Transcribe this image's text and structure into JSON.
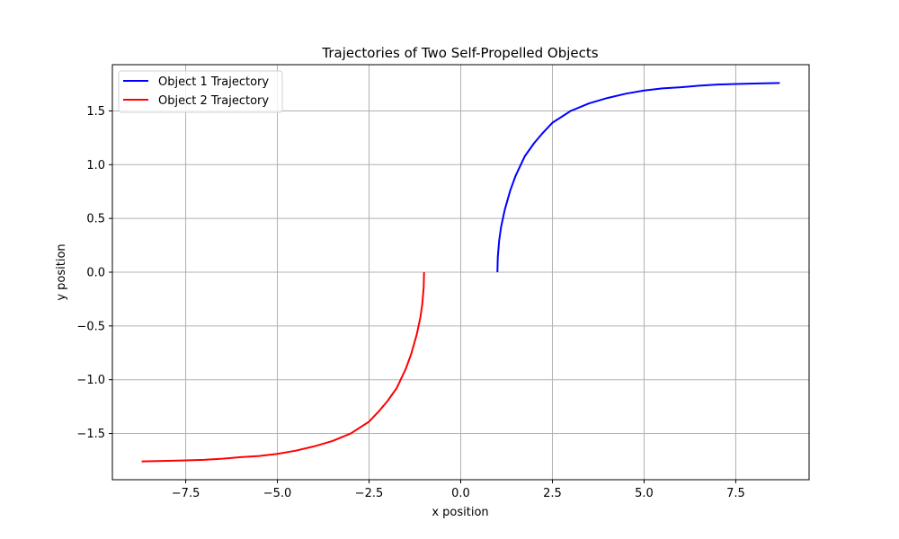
{
  "chart_data": {
    "type": "line",
    "title": "Trajectories of Two Self-Propelled Objects",
    "xlabel": "x position",
    "ylabel": "y position",
    "xlim": [
      -9.5,
      9.5
    ],
    "ylim": [
      -1.93,
      1.93
    ],
    "xticks": [
      -7.5,
      -5.0,
      -2.5,
      0.0,
      2.5,
      5.0,
      7.5
    ],
    "xtick_labels": [
      "−7.5",
      "−5.0",
      "−2.5",
      "0.0",
      "2.5",
      "5.0",
      "7.5"
    ],
    "yticks": [
      -1.5,
      -1.0,
      -0.5,
      0.0,
      0.5,
      1.0,
      1.5
    ],
    "ytick_labels": [
      "−1.5",
      "−1.0",
      "−0.5",
      "0.0",
      "0.5",
      "1.0",
      "1.5"
    ],
    "grid": true,
    "legend_position": "top-left",
    "series": [
      {
        "name": "Object 1 Trajectory",
        "color": "#0000ff",
        "x": [
          1.0,
          1.01,
          1.05,
          1.1,
          1.2,
          1.35,
          1.5,
          1.75,
          2.0,
          2.25,
          2.5,
          3.0,
          3.5,
          4.0,
          4.5,
          5.0,
          5.5,
          6.0,
          6.5,
          7.0,
          7.5,
          8.0,
          8.7
        ],
        "y": [
          0.0,
          0.14,
          0.3,
          0.42,
          0.58,
          0.76,
          0.9,
          1.08,
          1.2,
          1.3,
          1.39,
          1.5,
          1.57,
          1.62,
          1.66,
          1.69,
          1.71,
          1.72,
          1.735,
          1.745,
          1.75,
          1.755,
          1.76
        ]
      },
      {
        "name": "Object 2 Trajectory",
        "color": "#ff0000",
        "x": [
          -1.0,
          -1.01,
          -1.05,
          -1.1,
          -1.2,
          -1.35,
          -1.5,
          -1.75,
          -2.0,
          -2.25,
          -2.5,
          -3.0,
          -3.5,
          -4.0,
          -4.5,
          -5.0,
          -5.5,
          -6.0,
          -6.5,
          -7.0,
          -7.5,
          -8.0,
          -8.7
        ],
        "y": [
          0.0,
          -0.14,
          -0.3,
          -0.42,
          -0.58,
          -0.76,
          -0.9,
          -1.08,
          -1.2,
          -1.3,
          -1.39,
          -1.5,
          -1.57,
          -1.62,
          -1.66,
          -1.69,
          -1.71,
          -1.72,
          -1.735,
          -1.745,
          -1.75,
          -1.755,
          -1.76
        ]
      }
    ]
  }
}
